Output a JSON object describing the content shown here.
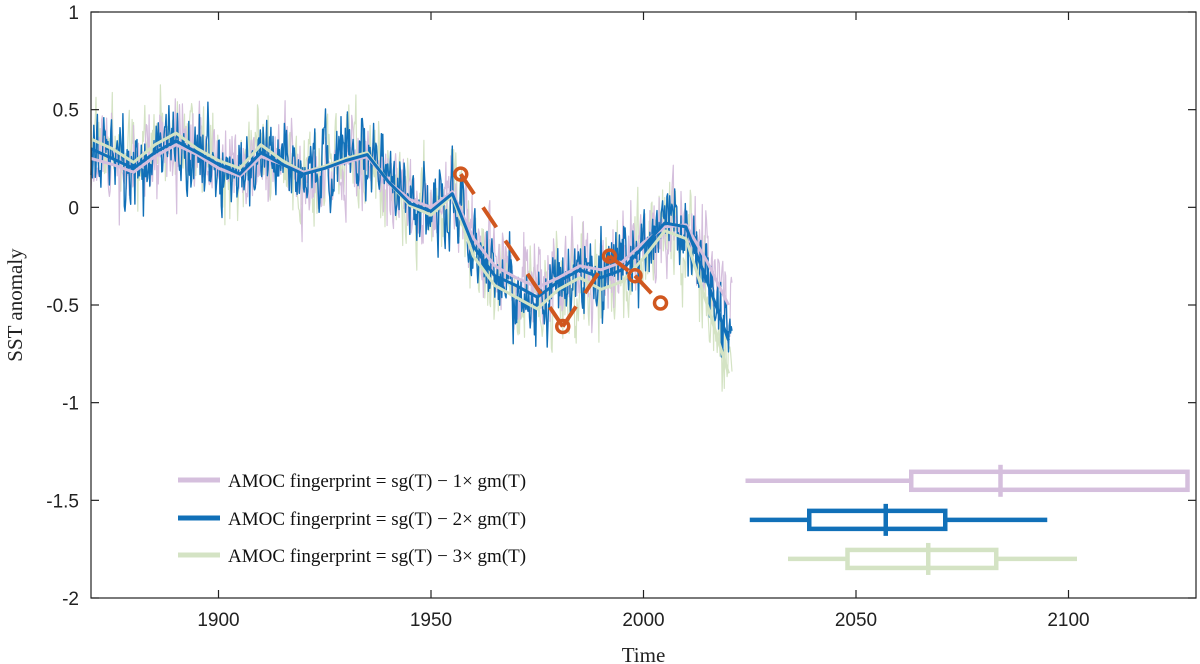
{
  "chart_data": {
    "type": "line",
    "title": "",
    "xlabel": "Time",
    "ylabel": "SST anomaly",
    "xlim": [
      1870,
      2130
    ],
    "ylim": [
      -2,
      1
    ],
    "xticks": [
      1900,
      1950,
      2000,
      2050,
      2100
    ],
    "xtick_labels": [
      "1900",
      "1950",
      "2000",
      "2050",
      "2100"
    ],
    "yticks": [
      -2,
      -1.5,
      -1,
      -0.5,
      0,
      0.5,
      1
    ],
    "ytick_labels": [
      "-2",
      "-1.5",
      "-1",
      "-0.5",
      "0",
      "0.5",
      "1"
    ],
    "grid": false,
    "legend_position": "bottom-left",
    "series": [
      {
        "name": "AMOC fingerprint = sg(T) − 1× gm(T)",
        "color": "#d5bfdd",
        "smoothed": [
          [
            1870,
            0.25
          ],
          [
            1875,
            0.22
          ],
          [
            1880,
            0.18
          ],
          [
            1885,
            0.26
          ],
          [
            1890,
            0.32
          ],
          [
            1895,
            0.27
          ],
          [
            1900,
            0.2
          ],
          [
            1905,
            0.16
          ],
          [
            1910,
            0.26
          ],
          [
            1915,
            0.22
          ],
          [
            1920,
            0.18
          ],
          [
            1925,
            0.2
          ],
          [
            1930,
            0.23
          ],
          [
            1935,
            0.26
          ],
          [
            1940,
            0.13
          ],
          [
            1945,
            0.04
          ],
          [
            1950,
            0.0
          ],
          [
            1955,
            0.08
          ],
          [
            1960,
            -0.16
          ],
          [
            1965,
            -0.3
          ],
          [
            1970,
            -0.36
          ],
          [
            1975,
            -0.41
          ],
          [
            1980,
            -0.36
          ],
          [
            1985,
            -0.3
          ],
          [
            1990,
            -0.32
          ],
          [
            1995,
            -0.28
          ],
          [
            2000,
            -0.18
          ],
          [
            2005,
            -0.1
          ],
          [
            2010,
            -0.09
          ],
          [
            2015,
            -0.28
          ],
          [
            2020,
            -0.5
          ]
        ]
      },
      {
        "name": "AMOC fingerprint = sg(T) − 2× gm(T)",
        "color": "#1170b8",
        "smoothed": [
          [
            1870,
            0.3
          ],
          [
            1875,
            0.25
          ],
          [
            1880,
            0.2
          ],
          [
            1885,
            0.28
          ],
          [
            1890,
            0.34
          ],
          [
            1895,
            0.28
          ],
          [
            1900,
            0.22
          ],
          [
            1905,
            0.17
          ],
          [
            1910,
            0.28
          ],
          [
            1915,
            0.22
          ],
          [
            1920,
            0.17
          ],
          [
            1925,
            0.2
          ],
          [
            1930,
            0.24
          ],
          [
            1935,
            0.27
          ],
          [
            1940,
            0.13
          ],
          [
            1945,
            0.02
          ],
          [
            1950,
            -0.02
          ],
          [
            1955,
            0.07
          ],
          [
            1960,
            -0.2
          ],
          [
            1965,
            -0.35
          ],
          [
            1970,
            -0.4
          ],
          [
            1975,
            -0.46
          ],
          [
            1980,
            -0.38
          ],
          [
            1985,
            -0.32
          ],
          [
            1990,
            -0.36
          ],
          [
            1995,
            -0.32
          ],
          [
            2000,
            -0.2
          ],
          [
            2005,
            -0.08
          ],
          [
            2010,
            -0.1
          ],
          [
            2015,
            -0.38
          ],
          [
            2020,
            -0.68
          ]
        ]
      },
      {
        "name": "AMOC fingerprint = sg(T) − 3× gm(T)",
        "color": "#d4e3c4",
        "smoothed": [
          [
            1870,
            0.35
          ],
          [
            1875,
            0.3
          ],
          [
            1880,
            0.23
          ],
          [
            1885,
            0.32
          ],
          [
            1890,
            0.38
          ],
          [
            1895,
            0.3
          ],
          [
            1900,
            0.24
          ],
          [
            1905,
            0.2
          ],
          [
            1910,
            0.32
          ],
          [
            1915,
            0.24
          ],
          [
            1920,
            0.18
          ],
          [
            1925,
            0.21
          ],
          [
            1930,
            0.25
          ],
          [
            1935,
            0.28
          ],
          [
            1940,
            0.13
          ],
          [
            1945,
            0.01
          ],
          [
            1950,
            -0.04
          ],
          [
            1955,
            0.06
          ],
          [
            1960,
            -0.25
          ],
          [
            1965,
            -0.4
          ],
          [
            1970,
            -0.46
          ],
          [
            1975,
            -0.52
          ],
          [
            1980,
            -0.42
          ],
          [
            1985,
            -0.36
          ],
          [
            1990,
            -0.42
          ],
          [
            1995,
            -0.38
          ],
          [
            2000,
            -0.26
          ],
          [
            2005,
            -0.12
          ],
          [
            2010,
            -0.16
          ],
          [
            2015,
            -0.5
          ],
          [
            2020,
            -0.85
          ]
        ]
      }
    ],
    "segments": {
      "color": "#d0571f",
      "points": [
        [
          1957,
          0.17
        ],
        [
          1981,
          -0.61
        ],
        [
          1992,
          -0.25
        ],
        [
          1998,
          -0.35
        ],
        [
          2004,
          -0.49
        ]
      ]
    },
    "boxplots": [
      {
        "color": "#d5bfdd",
        "y": -1.4,
        "whisker": [
          2024,
          2128
        ],
        "box": [
          2063,
          2128
        ],
        "median": 2084
      },
      {
        "color": "#1170b8",
        "y": -1.6,
        "whisker": [
          2025,
          2095
        ],
        "box": [
          2039,
          2071
        ],
        "median": 2057
      },
      {
        "color": "#d4e3c4",
        "y": -1.8,
        "whisker": [
          2034,
          2102
        ],
        "box": [
          2048,
          2083
        ],
        "median": 2067
      }
    ]
  }
}
